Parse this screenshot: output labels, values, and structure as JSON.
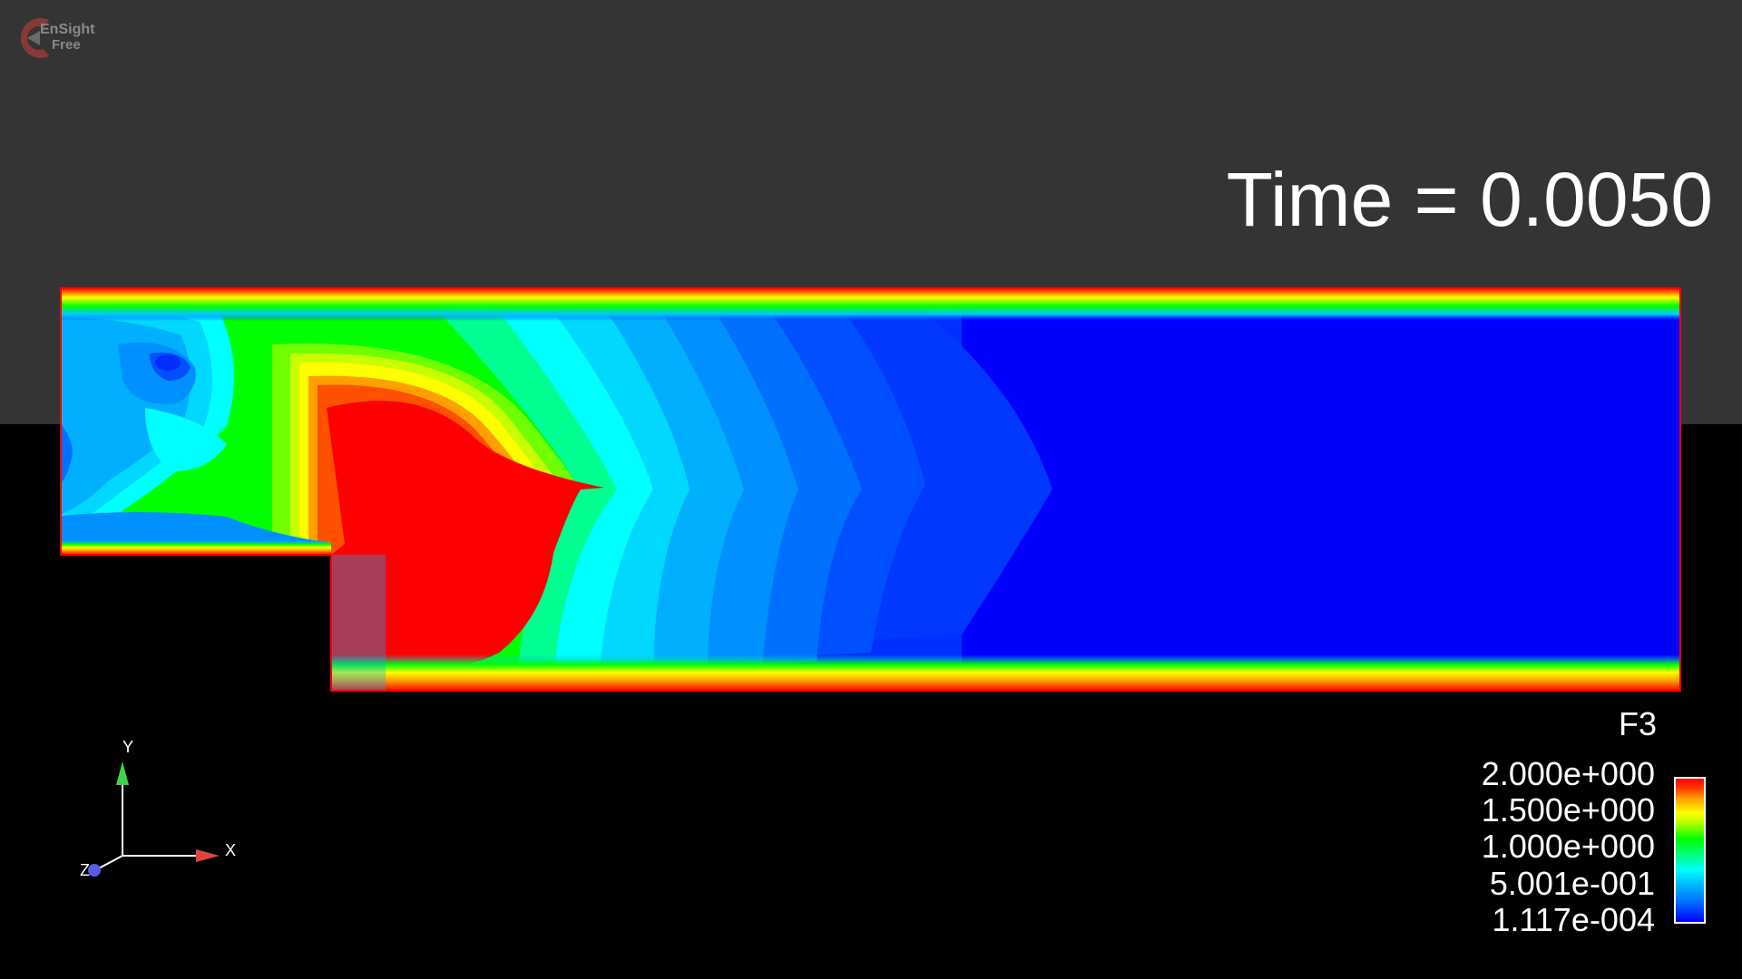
{
  "app": {
    "logo_line1": "EnSight",
    "logo_line2": "Free"
  },
  "annotation": {
    "time_text": "Time = 0.0050"
  },
  "legend": {
    "variable": "F3",
    "ticks": [
      "2.000e+000",
      "1.500e+000",
      "1.000e+000",
      "5.001e-001",
      "1.117e-004"
    ],
    "colors": [
      "#ff0000",
      "#ffff00",
      "#00ff00",
      "#00ffff",
      "#0000ff"
    ]
  },
  "axes": {
    "x_label": "X",
    "y_label": "Y",
    "z_label": "Z",
    "x_color": "#e0463e",
    "y_color": "#3fd24a",
    "z_color": "#5a5ae8"
  }
}
